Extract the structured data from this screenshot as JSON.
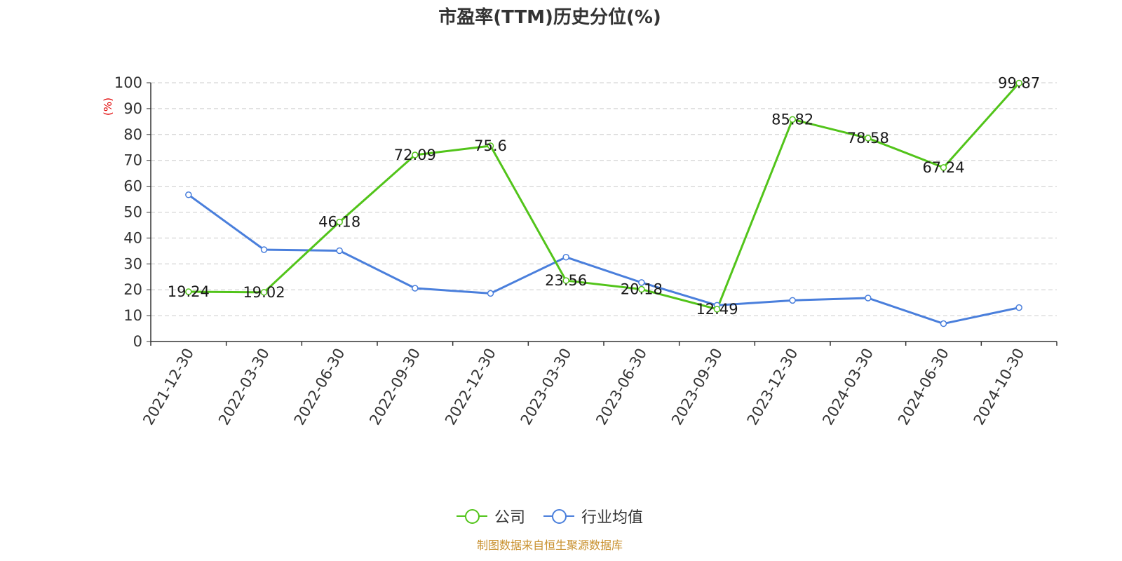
{
  "chart_data": {
    "type": "line",
    "title": "市盈率(TTM)历史分位(%)",
    "ylabel": "(%)",
    "xlabel": "",
    "ylim": [
      0,
      100
    ],
    "yticks": [
      "0",
      "10",
      "20",
      "30",
      "40",
      "50",
      "60",
      "70",
      "80",
      "90",
      "100"
    ],
    "grid": true,
    "legend_position": "bottom",
    "categories": [
      "2021-12-30",
      "2022-03-30",
      "2022-06-30",
      "2022-09-30",
      "2022-12-30",
      "2023-03-30",
      "2023-06-30",
      "2023-09-30",
      "2023-12-30",
      "2024-03-30",
      "2024-06-30",
      "2024-10-30"
    ],
    "series": [
      {
        "name": "公司",
        "color": "#52c41a",
        "values": [
          19.24,
          19.02,
          46.18,
          72.09,
          75.6,
          23.56,
          20.18,
          12.49,
          85.82,
          78.58,
          67.24,
          99.87
        ],
        "labels": [
          "19.24",
          "19.02",
          "46.18",
          "72.09",
          "75.6",
          "23.56",
          "20.18",
          "12.49",
          "85.82",
          "78.58",
          "67.24",
          "99.87"
        ]
      },
      {
        "name": "行业均值",
        "color": "#4a7fdc",
        "values": [
          56.7,
          35.5,
          35.1,
          20.6,
          18.6,
          32.6,
          22.8,
          14.0,
          15.9,
          16.8,
          6.9,
          13.1
        ]
      }
    ]
  },
  "source_note": "制图数据来自恒生聚源数据库"
}
